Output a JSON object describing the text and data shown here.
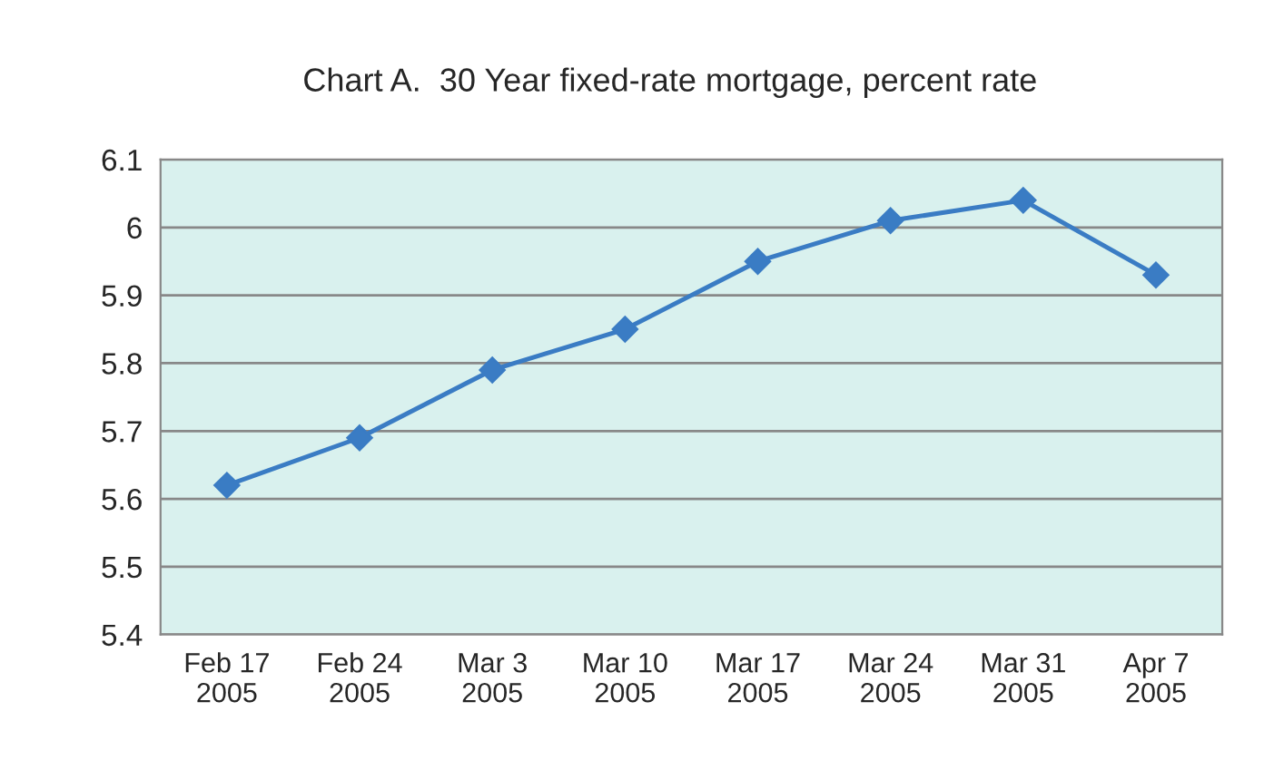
{
  "chart_data": {
    "type": "line",
    "title": "Chart A.  30 Year fixed-rate mortgage, percent rate",
    "categories": [
      "Feb 17\n2005",
      "Feb 24\n2005",
      "Mar 3\n2005",
      "Mar 10\n2005",
      "Mar 17\n2005",
      "Mar 24\n2005",
      "Mar 31\n2005",
      "Apr 7\n2005"
    ],
    "series": [
      {
        "color": "#3a7cc4",
        "values": [
          5.62,
          5.69,
          5.79,
          5.85,
          5.95,
          6.01,
          6.04,
          5.93
        ]
      }
    ],
    "ylim": [
      5.4,
      6.1
    ],
    "yticks": [
      5.4,
      5.5,
      5.6,
      5.7,
      5.8,
      5.9,
      6,
      6.1
    ],
    "grid": "y",
    "legend": false,
    "marker": "diamond",
    "line_style": "solid"
  }
}
